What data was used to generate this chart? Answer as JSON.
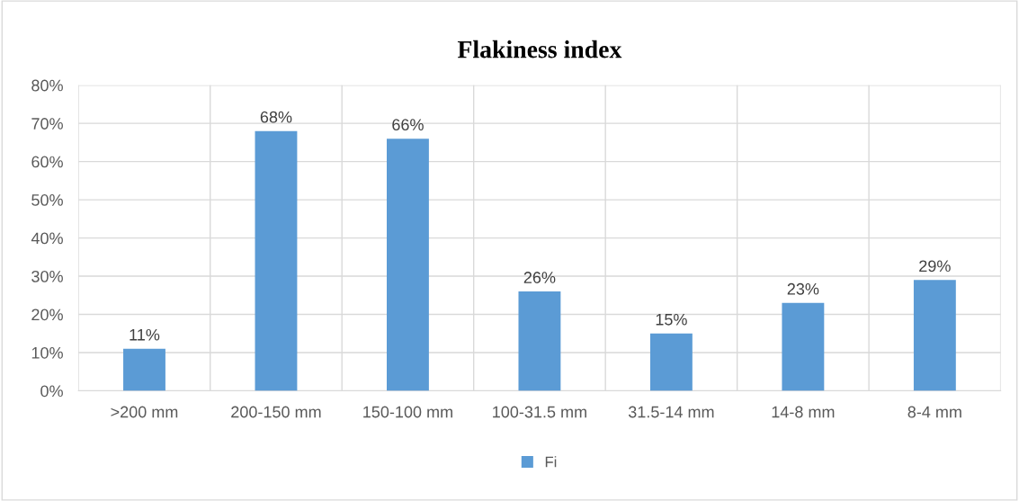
{
  "chart_data": {
    "type": "bar",
    "title": "Flakiness index",
    "categories": [
      ">200 mm",
      "200-150 mm",
      "150-100 mm",
      "100-31.5 mm",
      "31.5-14 mm",
      "14-8 mm",
      "8-4 mm"
    ],
    "series": [
      {
        "name": "Fi",
        "color": "#5b9bd5",
        "values": [
          11,
          68,
          66,
          26,
          15,
          23,
          29
        ],
        "value_labels": [
          "11%",
          "68%",
          "66%",
          "26%",
          "15%",
          "23%",
          "29%"
        ]
      }
    ],
    "ylim": [
      0,
      80
    ],
    "yticks": [
      {
        "value": 0,
        "label": "0%"
      },
      {
        "value": 10,
        "label": "10%"
      },
      {
        "value": 20,
        "label": "20%"
      },
      {
        "value": 30,
        "label": "30%"
      },
      {
        "value": 40,
        "label": "40%"
      },
      {
        "value": 50,
        "label": "50%"
      },
      {
        "value": 60,
        "label": "60%"
      },
      {
        "value": 70,
        "label": "70%"
      },
      {
        "value": 80,
        "label": "80%"
      }
    ],
    "grid": true,
    "legend": "bottom"
  }
}
